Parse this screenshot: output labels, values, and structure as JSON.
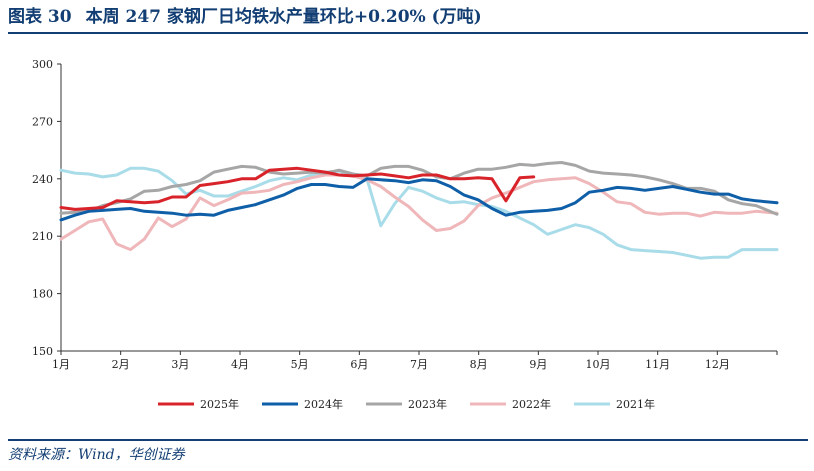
{
  "header": {
    "figure_no": "图表 30",
    "title": "本周 247 家钢厂日均铁水产量环比+0.20% (万吨)"
  },
  "footer": {
    "source": "资料来源：Wind，华创证券"
  },
  "chart_data": {
    "type": "line",
    "title": "本周 247 家钢厂日均铁水产量环比+0.20% (万吨)",
    "xlabel": "",
    "ylabel": "",
    "ylim": [
      150,
      300
    ],
    "yticks": [
      150,
      180,
      210,
      240,
      270,
      300
    ],
    "x_unit": "week_of_year",
    "xlim": [
      1,
      52.5
    ],
    "month_ticks": [
      "1月",
      "2月",
      "3月",
      "4月",
      "5月",
      "6月",
      "7月",
      "8月",
      "9月",
      "10月",
      "11月",
      "12月"
    ],
    "grid": false,
    "legend_position": "bottom",
    "series": [
      {
        "name": "2025年",
        "color": "#d9232a",
        "x": [
          1,
          2,
          3,
          4,
          5,
          6,
          7,
          8,
          9,
          10,
          11,
          12,
          13,
          14,
          15,
          16,
          17,
          18,
          19,
          20,
          21,
          22,
          23,
          24,
          25,
          26,
          27,
          28,
          29,
          30,
          31,
          32,
          33,
          34,
          35,
          36,
          37
        ],
        "values": [
          225,
          224,
          224.5,
          225,
          228.5,
          228,
          227.5,
          228,
          230.5,
          230.5,
          236.5,
          237.5,
          238.5,
          240,
          240,
          244.5,
          245,
          245.5,
          244.5,
          243.5,
          242,
          241.5,
          242,
          242.5,
          241.5,
          240.5,
          242,
          242,
          240,
          240,
          240.5,
          240,
          228.5,
          240.5,
          241,
          null,
          null
        ]
      },
      {
        "name": "2024年",
        "color": "#0f5fa8",
        "x": [
          1,
          2,
          3,
          4,
          5,
          6,
          7,
          8,
          9,
          10,
          11,
          12,
          13,
          14,
          15,
          16,
          17,
          18,
          19,
          20,
          21,
          22,
          23,
          24,
          25,
          26,
          27,
          28,
          29,
          30,
          31,
          32,
          33,
          34,
          35,
          36,
          37,
          38,
          39,
          40,
          41,
          42,
          43,
          44,
          45,
          46,
          47,
          48,
          49,
          50,
          51,
          52.5
        ],
        "values": [
          218.5,
          221,
          223,
          223.5,
          224,
          224.5,
          223,
          222.5,
          222,
          221,
          221.5,
          221,
          223.5,
          225,
          226.5,
          229,
          231.5,
          235,
          237,
          237,
          236,
          235.5,
          240,
          239.5,
          239,
          238,
          239.5,
          239,
          236,
          231.5,
          229,
          224.5,
          221,
          222.5,
          223,
          223.5,
          224.5,
          227.5,
          233,
          234,
          235.5,
          235,
          234,
          235,
          236,
          234.5,
          233,
          232,
          232,
          229.5,
          228.5,
          227.5
        ]
      },
      {
        "name": "2023年",
        "color": "#a6a6a6",
        "x": [
          1,
          2,
          3,
          4,
          5,
          6,
          7,
          8,
          9,
          10,
          11,
          12,
          13,
          14,
          15,
          16,
          17,
          18,
          19,
          20,
          21,
          22,
          23,
          24,
          25,
          26,
          27,
          28,
          29,
          30,
          31,
          32,
          33,
          34,
          35,
          36,
          37,
          38,
          39,
          40,
          41,
          42,
          43,
          44,
          45,
          46,
          47,
          48,
          49,
          50,
          51,
          52.5
        ],
        "values": [
          222,
          222.5,
          223,
          226,
          227.5,
          229.5,
          233.5,
          234,
          236,
          237,
          239,
          243.5,
          245,
          246.5,
          246,
          243.5,
          242.5,
          243,
          243.5,
          243,
          244.5,
          242.5,
          241.5,
          245.5,
          246.5,
          246.5,
          244.5,
          241,
          240,
          243,
          245,
          245,
          246,
          247.5,
          247,
          248,
          248.5,
          247,
          244,
          243,
          242.5,
          242,
          241,
          239.5,
          237.5,
          235,
          235,
          233.5,
          229,
          227,
          226,
          221.5
        ]
      },
      {
        "name": "2022年",
        "color": "#efb7b9",
        "x": [
          1,
          2,
          3,
          4,
          5,
          6,
          7,
          8,
          9,
          10,
          11,
          12,
          13,
          14,
          15,
          16,
          17,
          18,
          19,
          20,
          21,
          22,
          23,
          24,
          25,
          26,
          27,
          28,
          29,
          30,
          31,
          32,
          33,
          34,
          35,
          36,
          37,
          38,
          39,
          40,
          41,
          42,
          43,
          44,
          45,
          46,
          47,
          48,
          49,
          50,
          51,
          52.5
        ],
        "values": [
          208.5,
          213,
          217.5,
          219,
          206,
          203,
          208.5,
          219.5,
          215,
          219,
          230,
          226,
          229,
          232.5,
          233,
          234,
          237,
          238.5,
          240.5,
          242,
          242,
          241.5,
          239.5,
          236,
          230.5,
          225.5,
          218.5,
          213,
          214,
          218,
          226,
          230,
          232.5,
          235.5,
          238.5,
          239.5,
          240,
          240.5,
          237.5,
          233,
          228,
          227,
          222.5,
          221.5,
          222,
          222,
          220.5,
          222.5,
          222,
          222,
          223,
          222
        ]
      },
      {
        "name": "2021年",
        "color": "#a9dce9",
        "x": [
          1,
          2,
          3,
          4,
          5,
          6,
          7,
          8,
          9,
          10,
          11,
          12,
          13,
          14,
          15,
          16,
          17,
          18,
          19,
          20,
          21,
          22,
          23,
          24,
          25,
          26,
          27,
          28,
          29,
          30,
          31,
          32,
          33,
          34,
          35,
          36,
          37,
          38,
          39,
          40,
          41,
          42,
          43,
          44,
          45,
          46,
          47,
          48,
          49,
          50,
          51,
          52.5
        ],
        "values": [
          244.5,
          243,
          242.5,
          241,
          242,
          245.5,
          245.5,
          244,
          239,
          232,
          234,
          231,
          231,
          233.5,
          236,
          239,
          240.5,
          239.5,
          242,
          243.5,
          244,
          241.5,
          240,
          215.5,
          227,
          235.5,
          233.5,
          230,
          227.5,
          228,
          226.5,
          225.5,
          223,
          219.5,
          216,
          211,
          213.5,
          216,
          214.5,
          211,
          205.5,
          203,
          202.5,
          202,
          201.5,
          200,
          198.5,
          199,
          199,
          203,
          203,
          203
        ]
      }
    ]
  }
}
